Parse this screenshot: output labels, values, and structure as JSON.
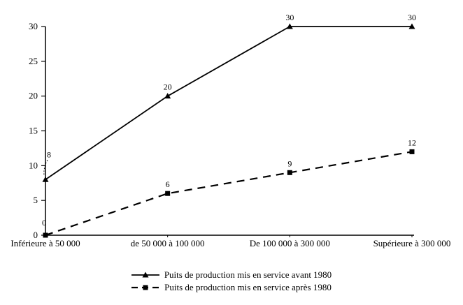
{
  "chart_data": {
    "type": "line",
    "categories": [
      "Inférieure à 50 000",
      "de 50 000 à 100 000",
      "De 100 000 à 300 000",
      "Supérieure à 300 000"
    ],
    "series": [
      {
        "name": "Puits de production mis en service avant 1980",
        "values": [
          8,
          20,
          30,
          30
        ],
        "marker": "triangle",
        "line_style": "solid"
      },
      {
        "name": "Puits de production mis en service après 1980",
        "values": [
          0,
          6,
          9,
          12
        ],
        "marker": "square",
        "line_style": "dashed"
      }
    ],
    "title": "",
    "xlabel": "",
    "ylabel": "",
    "ylim": [
      0,
      30
    ],
    "yticks": [
      0,
      5,
      10,
      15,
      20,
      25,
      30
    ],
    "grid": false,
    "legend_position": "bottom",
    "data_labels": true,
    "colors": {
      "line": "#000000",
      "background": "#ffffff"
    }
  }
}
